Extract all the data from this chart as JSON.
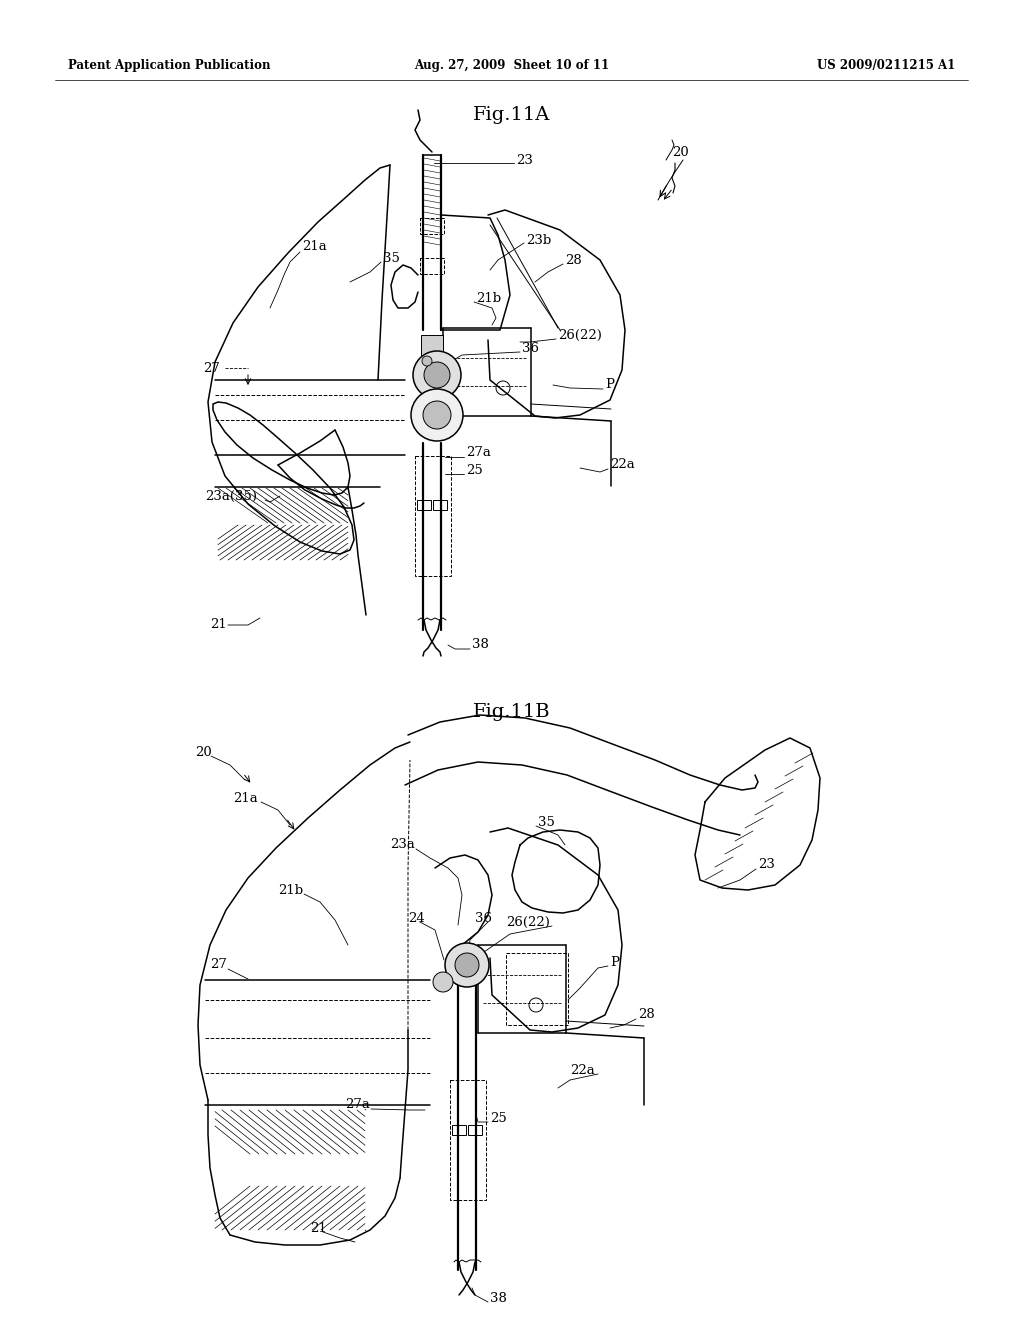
{
  "background_color": "#ffffff",
  "page_width": 10.24,
  "page_height": 13.2,
  "header_text_left": "Patent Application Publication",
  "header_text_center": "Aug. 27, 2009  Sheet 10 of 11",
  "header_text_right": "US 2009/0211215 A1",
  "fig_title_A": "Fig.11A",
  "fig_title_B": "Fig.11B",
  "line_color": "#000000",
  "font_size_header": 8.5,
  "font_size_fig_title": 14,
  "font_size_label": 9.5
}
